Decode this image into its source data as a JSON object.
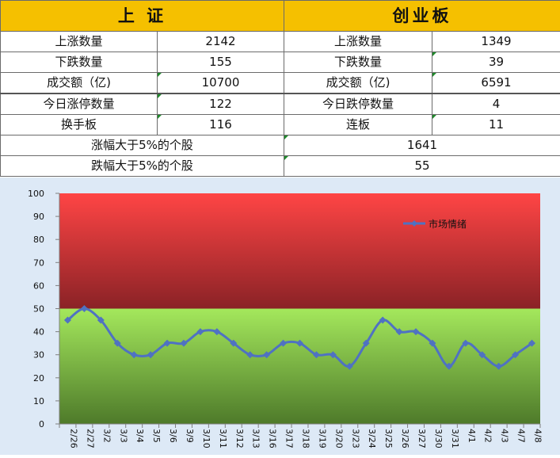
{
  "table": {
    "left_header": "上 证",
    "right_header": "创业板",
    "rows": [
      {
        "left_label": "上涨数量",
        "left_value": "2142",
        "right_label": "上涨数量",
        "right_value": "1349"
      },
      {
        "left_label": "下跌数量",
        "left_value": "155",
        "right_label": "下跌数量",
        "right_value": "39"
      },
      {
        "left_label": "成交额（亿)",
        "left_value": "10700",
        "right_label": "成交额（亿)",
        "right_value": "6591"
      },
      {
        "left_label": "今日涨停数量",
        "left_value": "122",
        "right_label": "今日跌停数量",
        "right_value": "4"
      },
      {
        "left_label": "换手板",
        "left_value": "116",
        "right_label": "连板",
        "right_value": "11"
      }
    ],
    "wide_rows": [
      {
        "label": "涨幅大于5%的个股",
        "value": "1641"
      },
      {
        "label": "跌幅大于5%的个股",
        "value": "55"
      }
    ]
  },
  "chart_data": {
    "type": "line",
    "title": "",
    "xlabel": "",
    "ylabel": "",
    "ylim": [
      0,
      100
    ],
    "yticks": [
      0,
      10,
      20,
      30,
      40,
      50,
      60,
      70,
      80,
      90,
      100
    ],
    "x": [
      "2/26",
      "2/27",
      "3/2",
      "3/3",
      "3/4",
      "3/5",
      "3/6",
      "3/9",
      "3/10",
      "3/11",
      "3/12",
      "3/13",
      "3/16",
      "3/17",
      "3/18",
      "3/19",
      "3/20",
      "3/23",
      "3/24",
      "3/25",
      "3/26",
      "3/27",
      "3/30",
      "3/31",
      "4/1",
      "4/2",
      "4/3",
      "4/7",
      "4/8"
    ],
    "series": [
      {
        "name": "市场情绪",
        "values": [
          45,
          50,
          45,
          35,
          30,
          30,
          35,
          35,
          40,
          40,
          35,
          30,
          30,
          35,
          35,
          30,
          30,
          25,
          35,
          45,
          40,
          40,
          35,
          25,
          35,
          30,
          25,
          30,
          35
        ]
      }
    ],
    "bands": [
      {
        "from": 50,
        "to": 100,
        "color_top": "#ff4545",
        "color_bottom": "#8a2226"
      },
      {
        "from": 0,
        "to": 50,
        "color_top": "#a4e85c",
        "color_bottom": "#4e7a2a"
      }
    ],
    "line_color": "#4f72c2",
    "grid": false,
    "legend_position": "top-right"
  }
}
